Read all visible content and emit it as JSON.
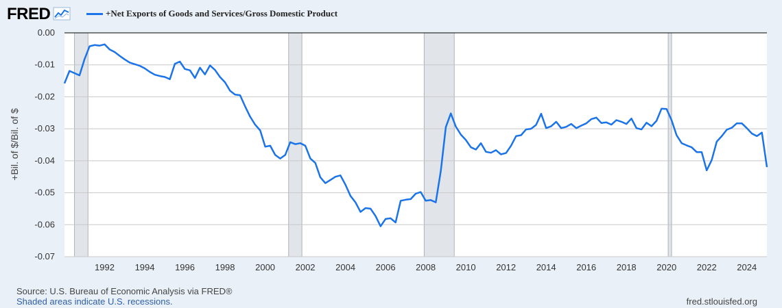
{
  "header": {
    "logo_text": "FRED",
    "logo_icon": "line-chart-icon"
  },
  "footer": {
    "source": "Source: U.S. Bureau of Economic Analysis via FRED®",
    "note": "Shaded areas indicate U.S. recessions.",
    "url": "fred.stlouisfed.org"
  },
  "colors": {
    "series": "#1a73e8",
    "recession": "#e1e5ea",
    "plot_bg": "#ffffff",
    "page_bg": "#eaf0f7"
  },
  "chart_data": {
    "type": "line",
    "title": "",
    "xlabel": "",
    "ylabel": "+Bil. of $/Bil. of $",
    "xlim": [
      1990.0,
      2025.0
    ],
    "ylim": [
      -0.07,
      0.0
    ],
    "grid": true,
    "legend_placement": "top-left",
    "y_ticks": [
      0.0,
      -0.01,
      -0.02,
      -0.03,
      -0.04,
      -0.05,
      -0.06,
      -0.07
    ],
    "y_tick_labels": [
      "0.00",
      "-0.01",
      "-0.02",
      "-0.03",
      "-0.04",
      "-0.05",
      "-0.06",
      "-0.07"
    ],
    "x_ticks": [
      1992,
      1994,
      1996,
      1998,
      2000,
      2002,
      2004,
      2006,
      2008,
      2010,
      2012,
      2014,
      2016,
      2018,
      2020,
      2022,
      2024
    ],
    "x_tick_labels": [
      "1992",
      "1994",
      "1996",
      "1998",
      "2000",
      "2002",
      "2004",
      "2006",
      "2008",
      "2010",
      "2012",
      "2014",
      "2016",
      "2018",
      "2020",
      "2022",
      "2024"
    ],
    "recessions": [
      [
        1990.5,
        1991.17
      ],
      [
        2001.17,
        2001.83
      ],
      [
        2007.92,
        2009.42
      ],
      [
        2020.08,
        2020.25
      ]
    ],
    "series": [
      {
        "name": "+Net Exports of Goods and Services/Gross Domestic Product",
        "x": [
          1990.0,
          1990.25,
          1990.5,
          1990.75,
          1991.0,
          1991.25,
          1991.5,
          1991.75,
          1992.0,
          1992.25,
          1992.5,
          1992.75,
          1993.0,
          1993.25,
          1993.5,
          1993.75,
          1994.0,
          1994.25,
          1994.5,
          1994.75,
          1995.0,
          1995.25,
          1995.5,
          1995.75,
          1996.0,
          1996.25,
          1996.5,
          1996.75,
          1997.0,
          1997.25,
          1997.5,
          1997.75,
          1998.0,
          1998.25,
          1998.5,
          1998.75,
          1999.0,
          1999.25,
          1999.5,
          1999.75,
          2000.0,
          2000.25,
          2000.5,
          2000.75,
          2001.0,
          2001.25,
          2001.5,
          2001.75,
          2002.0,
          2002.25,
          2002.5,
          2002.75,
          2003.0,
          2003.25,
          2003.5,
          2003.75,
          2004.0,
          2004.25,
          2004.5,
          2004.75,
          2005.0,
          2005.25,
          2005.5,
          2005.75,
          2006.0,
          2006.25,
          2006.5,
          2006.75,
          2007.0,
          2007.25,
          2007.5,
          2007.75,
          2008.0,
          2008.25,
          2008.5,
          2008.75,
          2009.0,
          2009.25,
          2009.5,
          2009.75,
          2010.0,
          2010.25,
          2010.5,
          2010.75,
          2011.0,
          2011.25,
          2011.5,
          2011.75,
          2012.0,
          2012.25,
          2012.5,
          2012.75,
          2013.0,
          2013.25,
          2013.5,
          2013.75,
          2014.0,
          2014.25,
          2014.5,
          2014.75,
          2015.0,
          2015.25,
          2015.5,
          2015.75,
          2016.0,
          2016.25,
          2016.5,
          2016.75,
          2017.0,
          2017.25,
          2017.5,
          2017.75,
          2018.0,
          2018.25,
          2018.5,
          2018.75,
          2019.0,
          2019.25,
          2019.5,
          2019.75,
          2020.0,
          2020.25,
          2020.5,
          2020.75,
          2021.0,
          2021.25,
          2021.5,
          2021.75,
          2022.0,
          2022.25,
          2022.5,
          2022.75,
          2023.0,
          2023.25,
          2023.5,
          2023.75,
          2024.0,
          2024.25,
          2024.5,
          2024.75,
          2025.0
        ],
        "values": [
          -0.0158,
          -0.0119,
          -0.0126,
          -0.0133,
          -0.0082,
          -0.0042,
          -0.0038,
          -0.004,
          -0.0036,
          -0.0052,
          -0.006,
          -0.0072,
          -0.0083,
          -0.0093,
          -0.0098,
          -0.0103,
          -0.0111,
          -0.0122,
          -0.0131,
          -0.0135,
          -0.0138,
          -0.0145,
          -0.0097,
          -0.009,
          -0.0113,
          -0.0117,
          -0.0141,
          -0.0109,
          -0.013,
          -0.0102,
          -0.0116,
          -0.0138,
          -0.0155,
          -0.0181,
          -0.0193,
          -0.0195,
          -0.023,
          -0.0262,
          -0.0287,
          -0.0305,
          -0.0356,
          -0.0353,
          -0.0382,
          -0.0393,
          -0.0382,
          -0.0342,
          -0.0348,
          -0.0345,
          -0.0353,
          -0.0393,
          -0.0407,
          -0.0452,
          -0.047,
          -0.046,
          -0.045,
          -0.0446,
          -0.0475,
          -0.051,
          -0.053,
          -0.056,
          -0.0548,
          -0.055,
          -0.0573,
          -0.0605,
          -0.0582,
          -0.058,
          -0.0593,
          -0.0525,
          -0.0522,
          -0.052,
          -0.0503,
          -0.0498,
          -0.0525,
          -0.0523,
          -0.053,
          -0.0432,
          -0.0295,
          -0.0252,
          -0.0293,
          -0.0318,
          -0.0335,
          -0.0358,
          -0.0365,
          -0.0345,
          -0.0372,
          -0.0375,
          -0.0367,
          -0.038,
          -0.0376,
          -0.0353,
          -0.0323,
          -0.032,
          -0.0302,
          -0.03,
          -0.0288,
          -0.0253,
          -0.0298,
          -0.0292,
          -0.0278,
          -0.0298,
          -0.0294,
          -0.0285,
          -0.0298,
          -0.029,
          -0.0283,
          -0.027,
          -0.0265,
          -0.0282,
          -0.028,
          -0.0287,
          -0.0273,
          -0.0278,
          -0.0285,
          -0.0268,
          -0.0298,
          -0.0302,
          -0.0281,
          -0.0292,
          -0.0275,
          -0.0237,
          -0.0238,
          -0.0273,
          -0.032,
          -0.0345,
          -0.0352,
          -0.0358,
          -0.0373,
          -0.0373,
          -0.043,
          -0.0398,
          -0.034,
          -0.0323,
          -0.0303,
          -0.0297,
          -0.0283,
          -0.0283,
          -0.0298,
          -0.0315,
          -0.0323,
          -0.0312,
          -0.042
        ]
      }
    ]
  }
}
